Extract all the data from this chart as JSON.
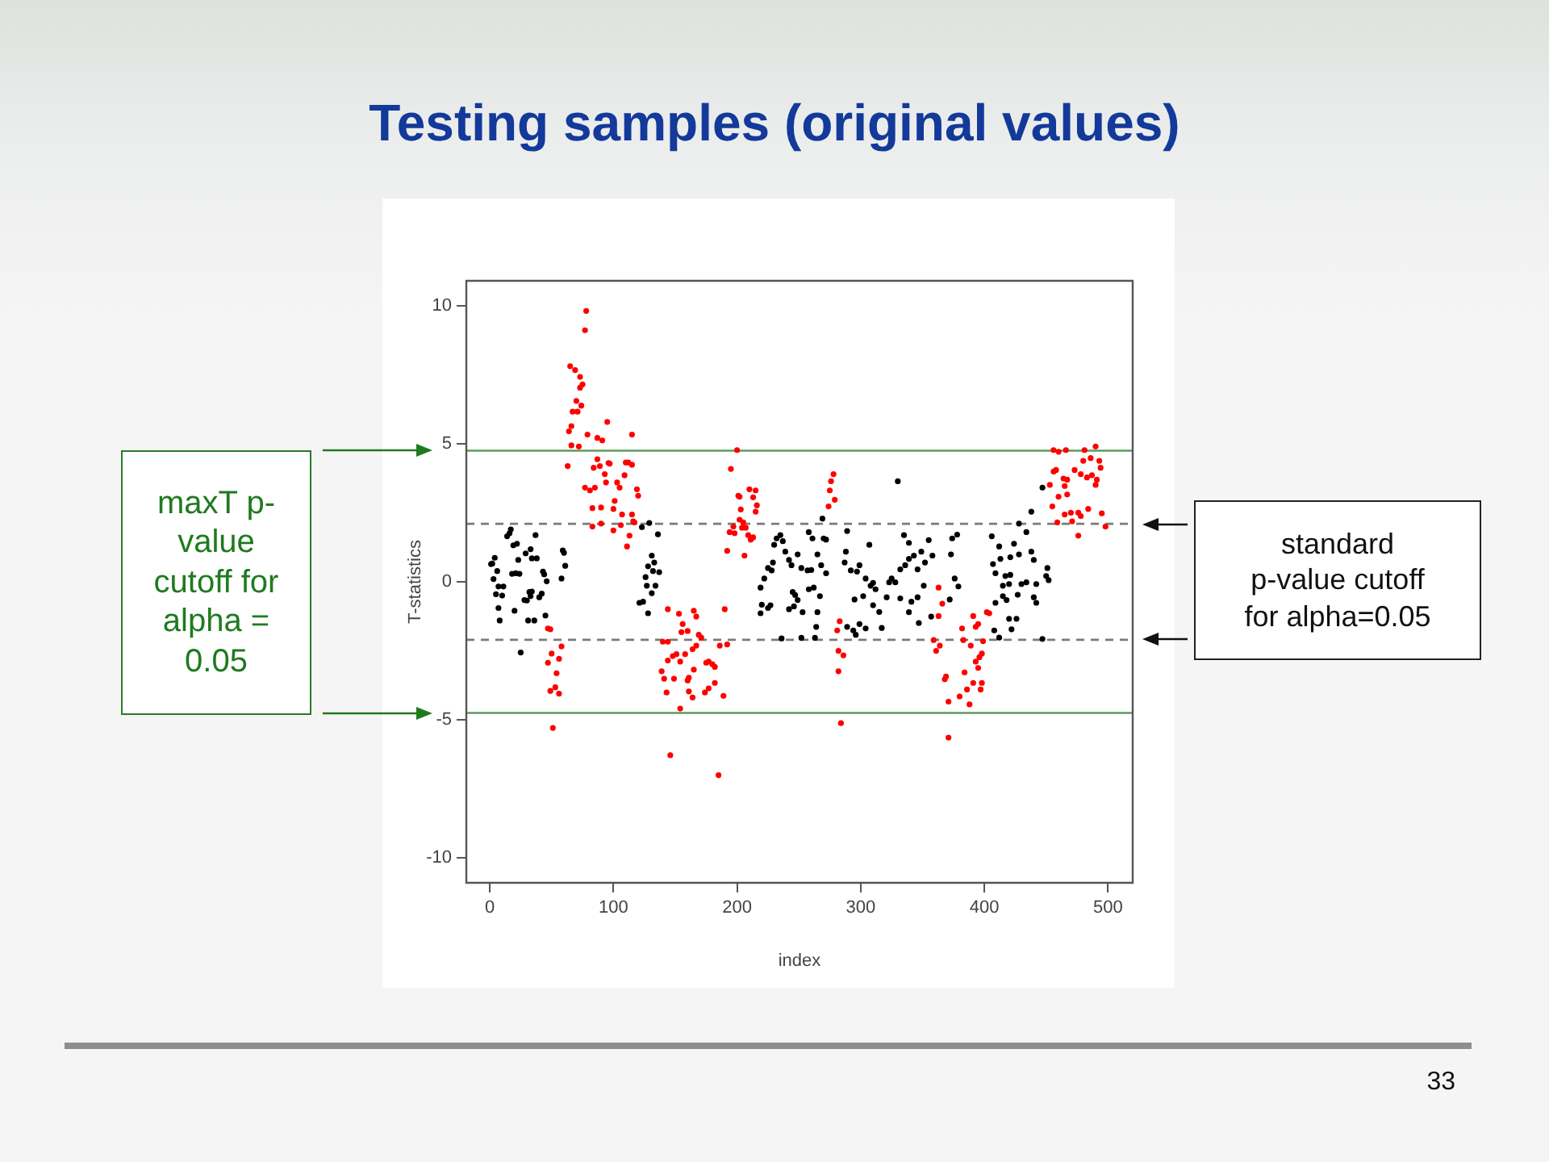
{
  "chart_data": {
    "type": "scatter",
    "title": "Testing samples (original values)",
    "xlabel": "index",
    "ylabel": "T-statistics",
    "xlim": [
      -19,
      520
    ],
    "ylim": [
      -10.9,
      10.9
    ],
    "xticks": [
      0,
      100,
      200,
      300,
      400,
      500
    ],
    "yticks": [
      -10,
      -5,
      0,
      5,
      10
    ],
    "grid": false,
    "legend": false,
    "marker": "circle",
    "series": [
      {
        "color": "#000000",
        "x": [
          1,
          2,
          3,
          4,
          5,
          6,
          7,
          7,
          8,
          10,
          11,
          14,
          16,
          17,
          18,
          19,
          20,
          21,
          22,
          23,
          24,
          25,
          28,
          29,
          30,
          31,
          32,
          33,
          33,
          34,
          34,
          36,
          37,
          38,
          40,
          42,
          43,
          44,
          45,
          46,
          58,
          59,
          60,
          61,
          123,
          121,
          124,
          126,
          127,
          128,
          128,
          129,
          131,
          131,
          132,
          133,
          134,
          136,
          137,
          219,
          219,
          220,
          222,
          225,
          225,
          227,
          228,
          229,
          230,
          232,
          235,
          236,
          237,
          239,
          242,
          242,
          244,
          245,
          246,
          247,
          249,
          249,
          252,
          252,
          253,
          257,
          258,
          258,
          260,
          261,
          262,
          264,
          263,
          265,
          265,
          267,
          268,
          269,
          270,
          272,
          272,
          287,
          288,
          289,
          289,
          292,
          294,
          295,
          296,
          297,
          299,
          299,
          302,
          304,
          304,
          307,
          308,
          310,
          310,
          312,
          315,
          317,
          321,
          323,
          325,
          328,
          330,
          332,
          332,
          335,
          336,
          339,
          339,
          339,
          341,
          343,
          346,
          346,
          347,
          349,
          351,
          352,
          355,
          357,
          358,
          372,
          373,
          374,
          376,
          378,
          379,
          406,
          407,
          408,
          409,
          409,
          412,
          412,
          413,
          415,
          415,
          417,
          418,
          420,
          420,
          421,
          421,
          422,
          424,
          426,
          427,
          428,
          428,
          430,
          434,
          434,
          438,
          438,
          440,
          440,
          442,
          442,
          447,
          447,
          450,
          451,
          452
        ],
        "values": [
          0.64,
          0.66,
          0.1,
          0.87,
          -0.45,
          0.39,
          -0.17,
          -0.95,
          -1.4,
          -0.5,
          -0.17,
          1.65,
          1.76,
          1.9,
          0.29,
          1.32,
          -1.05,
          0.31,
          1.38,
          0.79,
          0.29,
          -2.56,
          -0.66,
          1.03,
          -0.68,
          -1.4,
          -0.37,
          1.18,
          -0.52,
          0.85,
          -0.35,
          -1.4,
          1.69,
          0.85,
          -0.56,
          -0.43,
          0.37,
          0.27,
          -1.22,
          0.02,
          0.12,
          1.14,
          1.05,
          0.58,
          1.98,
          -0.76,
          -0.72,
          0.17,
          -0.14,
          0.56,
          -1.14,
          2.13,
          0.95,
          -0.41,
          0.39,
          0.7,
          -0.14,
          1.72,
          0.35,
          -0.21,
          -1.14,
          -0.83,
          0.12,
          -0.95,
          0.5,
          -0.85,
          0.41,
          0.7,
          1.34,
          1.57,
          1.69,
          -2.05,
          1.47,
          1.09,
          0.79,
          -0.99,
          0.6,
          -0.37,
          -0.89,
          -0.48,
          0.99,
          -0.66,
          0.5,
          -2.03,
          -1.1,
          0.41,
          1.8,
          -0.27,
          0.43,
          1.57,
          -0.21,
          -1.63,
          -2.03,
          0.99,
          -1.1,
          -0.52,
          0.6,
          2.29,
          1.57,
          0.31,
          1.53,
          0.7,
          1.09,
          1.84,
          -1.63,
          0.41,
          -1.76,
          -0.64,
          -1.92,
          0.37,
          -1.53,
          0.6,
          -0.52,
          0.12,
          -1.69,
          1.34,
          -0.14,
          -0.04,
          -0.85,
          -0.27,
          -1.09,
          -1.67,
          -0.56,
          -0.02,
          0.12,
          -0.02,
          3.64,
          0.45,
          -0.6,
          1.69,
          0.6,
          0.83,
          1.41,
          -1.1,
          -0.72,
          0.95,
          0.45,
          -0.56,
          -1.49,
          1.09,
          -0.14,
          0.7,
          1.51,
          -1.26,
          0.95,
          -0.64,
          0.99,
          1.57,
          0.12,
          1.71,
          -0.17,
          1.65,
          0.64,
          -1.76,
          0.31,
          -0.76,
          1.28,
          -2.02,
          0.83,
          -0.14,
          -0.52,
          0.21,
          -0.66,
          -0.08,
          -1.34,
          0.89,
          0.25,
          -1.72,
          1.38,
          -1.34,
          -0.47,
          2.11,
          0.99,
          -0.08,
          -0.02,
          1.8,
          2.54,
          1.09,
          0.79,
          -0.56,
          -0.08,
          -0.76,
          3.41,
          -2.07,
          0.21,
          0.5,
          0.06
        ]
      },
      {
        "color": "#ff0000",
        "x": [
          47,
          47,
          49,
          49,
          50,
          51,
          53,
          54,
          56,
          56,
          58,
          63,
          64,
          65,
          66,
          66,
          67,
          69,
          70,
          71,
          72,
          73,
          73,
          74,
          75,
          77,
          77,
          78,
          79,
          81,
          83,
          83,
          84,
          85,
          87,
          87,
          89,
          90,
          90,
          91,
          93,
          94,
          95,
          96,
          97,
          100,
          100,
          101,
          103,
          105,
          106,
          107,
          109,
          110,
          111,
          112,
          113,
          115,
          115,
          115,
          116,
          117,
          119,
          120,
          139,
          140,
          141,
          143,
          144,
          144,
          144,
          146,
          148,
          149,
          151,
          153,
          154,
          154,
          155,
          156,
          158,
          160,
          160,
          161,
          161,
          164,
          164,
          165,
          165,
          167,
          167,
          169,
          171,
          174,
          175,
          177,
          177,
          180,
          182,
          182,
          185,
          186,
          189,
          190,
          192,
          192,
          194,
          195,
          197,
          198,
          200,
          201,
          202,
          202,
          203,
          204,
          205,
          206,
          207,
          209,
          210,
          211,
          213,
          213,
          215,
          215,
          216,
          274,
          275,
          276,
          278,
          279,
          281,
          282,
          282,
          283,
          284,
          286,
          359,
          361,
          363,
          363,
          364,
          366,
          368,
          369,
          371,
          371,
          380,
          382,
          383,
          384,
          386,
          388,
          389,
          391,
          391,
          393,
          393,
          395,
          395,
          396,
          397,
          398,
          398,
          399,
          402,
          404,
          453,
          455,
          456,
          456,
          458,
          459,
          460,
          460,
          464,
          465,
          465,
          466,
          467,
          467,
          470,
          471,
          473,
          476,
          476,
          478,
          478,
          480,
          481,
          483,
          484,
          486,
          487,
          490,
          490,
          491,
          493,
          494,
          495,
          498
        ],
        "values": [
          -1.69,
          -2.93,
          -1.72,
          -3.95,
          -2.6,
          -5.29,
          -3.82,
          -3.31,
          -2.79,
          -4.05,
          -2.34,
          4.19,
          5.45,
          7.81,
          4.94,
          5.64,
          6.16,
          7.67,
          6.55,
          6.16,
          4.9,
          7.42,
          7.03,
          6.38,
          7.15,
          9.11,
          3.41,
          9.81,
          5.33,
          3.31,
          2.67,
          2.0,
          4.13,
          3.41,
          5.21,
          4.44,
          4.19,
          2.69,
          2.11,
          5.12,
          3.9,
          3.6,
          5.79,
          4.3,
          4.28,
          1.86,
          2.64,
          2.93,
          3.6,
          3.41,
          2.05,
          2.44,
          3.86,
          4.32,
          1.28,
          4.32,
          1.67,
          5.33,
          4.24,
          2.44,
          2.19,
          2.15,
          3.35,
          3.12,
          -3.24,
          -2.17,
          -3.51,
          -4.01,
          -0.99,
          -2.17,
          -2.85,
          -6.28,
          -2.69,
          -3.51,
          -2.62,
          -1.16,
          -2.89,
          -4.59,
          -1.82,
          -1.53,
          -2.62,
          -1.78,
          -3.57,
          -3.47,
          -3.97,
          -2.44,
          -4.19,
          -1.05,
          -3.18,
          -1.26,
          -2.31,
          -1.92,
          -2.02,
          -4.01,
          -2.93,
          -2.89,
          -3.86,
          -2.98,
          -3.08,
          -3.66,
          -7.0,
          -2.31,
          -4.13,
          -0.99,
          -2.27,
          1.12,
          1.8,
          4.09,
          2.0,
          1.76,
          4.77,
          3.12,
          2.25,
          3.08,
          2.62,
          1.96,
          2.15,
          0.95,
          1.96,
          1.69,
          3.35,
          1.53,
          1.61,
          3.06,
          3.31,
          2.54,
          2.77,
          2.73,
          3.31,
          3.64,
          3.9,
          2.97,
          -1.76,
          -3.24,
          -2.5,
          -1.43,
          -5.12,
          -2.66,
          -2.11,
          -2.5,
          -0.21,
          -1.24,
          -2.31,
          -0.79,
          -3.53,
          -3.43,
          -4.34,
          -5.64,
          -4.15,
          -1.69,
          -2.11,
          -3.28,
          -3.9,
          -4.44,
          -2.31,
          -1.24,
          -3.66,
          -2.89,
          -1.63,
          -1.53,
          -3.12,
          -2.73,
          -3.9,
          -2.6,
          -3.66,
          -2.15,
          -1.1,
          -1.14,
          3.51,
          2.73,
          4.77,
          3.99,
          4.05,
          2.15,
          3.08,
          4.71,
          3.74,
          3.47,
          2.44,
          4.77,
          3.7,
          3.16,
          2.5,
          2.19,
          4.05,
          1.67,
          2.5,
          3.9,
          2.38,
          4.38,
          4.77,
          3.78,
          2.64,
          4.48,
          3.86,
          4.9,
          3.51,
          3.7,
          4.38,
          4.13,
          2.48,
          2.0
        ]
      }
    ],
    "ref_lines": [
      {
        "axis": "y",
        "value": 4.75,
        "color": "#5c9c5c",
        "line_style": "solid"
      },
      {
        "axis": "y",
        "value": -4.75,
        "color": "#5c9c5c",
        "line_style": "solid"
      },
      {
        "axis": "y",
        "value": 2.1,
        "color": "#7a7a7a",
        "line_style": "dashed"
      },
      {
        "axis": "y",
        "value": -2.1,
        "color": "#7a7a7a",
        "line_style": "dashed"
      }
    ],
    "annotations": [
      "maxT p-value cutoff for alpha = 0.05",
      "standard p-value cutoff for alpha=0.05",
      "33"
    ]
  }
}
